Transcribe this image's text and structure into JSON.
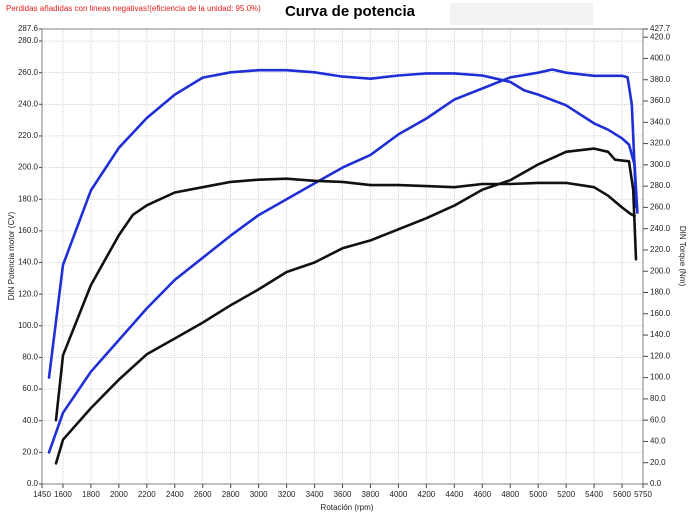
{
  "chart_data": {
    "type": "line",
    "title": "Curva de potencia",
    "subtitle": "Perdidas añadidas con lineas negativas!(eficiencia de la unidad: 95.0%)",
    "x_label": "Rotación (rpm)",
    "y_label": "DIN Potencia motor (CV)",
    "y2_label": "DIN Torque (Nm)",
    "xlim": [
      1450,
      5750
    ],
    "xticks": [
      1450,
      1600,
      1800,
      2000,
      2200,
      2400,
      2600,
      2800,
      3000,
      3200,
      3400,
      3600,
      3800,
      4000,
      4200,
      4400,
      4600,
      4800,
      5000,
      5200,
      5400,
      5600,
      5750
    ],
    "ylim": [
      0,
      287.6
    ],
    "yticks": [
      {
        "value": 0,
        "label": "0.0"
      },
      {
        "value": 20,
        "label": "20.0"
      },
      {
        "value": 40,
        "label": "40.0"
      },
      {
        "value": 60,
        "label": "60.0"
      },
      {
        "value": 80,
        "label": "80.0"
      },
      {
        "value": 100,
        "label": "100.0"
      },
      {
        "value": 120,
        "label": "120.0"
      },
      {
        "value": 140,
        "label": "140.0"
      },
      {
        "value": 160,
        "label": "160.0"
      },
      {
        "value": 180,
        "label": "180.0"
      },
      {
        "value": 200,
        "label": "200.0"
      },
      {
        "value": 220,
        "label": "220.0"
      },
      {
        "value": 240,
        "label": "240.0"
      },
      {
        "value": 260,
        "label": "260.0"
      },
      {
        "value": 280,
        "label": "280.0"
      },
      287.6
    ],
    "y2lim": [
      0,
      427.7
    ],
    "y2ticks": [
      {
        "value": 0,
        "label": "0.0"
      },
      {
        "value": 20,
        "label": "20.0"
      },
      {
        "value": 40,
        "label": "40.0"
      },
      {
        "value": 60,
        "label": "60.0"
      },
      {
        "value": 80,
        "label": "80.0"
      },
      {
        "value": 100,
        "label": "100.0"
      },
      {
        "value": 120,
        "label": "120.0"
      },
      {
        "value": 140,
        "label": "140.0"
      },
      {
        "value": 160,
        "label": "160.0"
      },
      {
        "value": 180,
        "label": "180.0"
      },
      {
        "value": 200,
        "label": "200.0"
      },
      {
        "value": 220,
        "label": "220.0"
      },
      {
        "value": 240,
        "label": "240.0"
      },
      {
        "value": 260,
        "label": "260.0"
      },
      {
        "value": 280,
        "label": "280.0"
      },
      {
        "value": 300,
        "label": "300.0"
      },
      {
        "value": 320,
        "label": "320.0"
      },
      {
        "value": 340,
        "label": "340.0"
      },
      {
        "value": 360,
        "label": "360.0"
      },
      {
        "value": 380,
        "label": "380.0"
      },
      {
        "value": 400,
        "label": "400.0"
      },
      {
        "value": 420,
        "label": "420.0"
      },
      427.7
    ],
    "grid": true,
    "series": [
      {
        "color": "#1f2fd6",
        "axis": "y2",
        "x": [
          1500,
          1600,
          1800,
          2000,
          2200,
          2400,
          2600,
          2800,
          3000,
          3200,
          3400,
          3600,
          3800,
          4000,
          4200,
          4400,
          4600,
          4800,
          4900,
          5000,
          5200,
          5400,
          5500,
          5600,
          5650,
          5690,
          5710
        ],
        "values": [
          100,
          206,
          276,
          316,
          344,
          366,
          382,
          387,
          389,
          389,
          387,
          383,
          381,
          384,
          386,
          386,
          384,
          378,
          370,
          366,
          356,
          339,
          333,
          325,
          319,
          300,
          255
        ]
      },
      {
        "color": "#1f2fd6",
        "axis": "y",
        "x": [
          1500,
          1600,
          1800,
          2000,
          2200,
          2400,
          2600,
          2800,
          3000,
          3200,
          3400,
          3600,
          3800,
          4000,
          4200,
          4400,
          4600,
          4800,
          5000,
          5100,
          5200,
          5400,
          5500,
          5600,
          5640,
          5670,
          5690,
          5700
        ],
        "values": [
          20,
          45,
          71,
          91,
          111,
          129,
          143,
          157,
          170,
          180,
          190,
          200,
          208,
          221,
          231,
          243,
          250,
          257,
          260,
          262,
          260,
          258,
          258,
          258,
          257,
          240,
          200,
          175
        ]
      },
      {
        "color": "#111111",
        "axis": "y2",
        "x": [
          1550,
          1600,
          1800,
          2000,
          2100,
          2200,
          2400,
          2600,
          2800,
          3000,
          3200,
          3400,
          3600,
          3800,
          4000,
          4200,
          4400,
          4600,
          4800,
          5000,
          5200,
          5400,
          5500,
          5600,
          5660,
          5690
        ],
        "values": [
          60,
          121,
          187,
          234,
          253,
          262,
          274,
          279,
          284,
          286,
          287,
          285,
          284,
          281,
          281,
          280,
          279,
          282,
          282,
          283,
          283,
          279,
          271,
          260,
          254,
          252
        ]
      },
      {
        "color": "#111111",
        "axis": "y",
        "x": [
          1550,
          1600,
          1800,
          2000,
          2200,
          2400,
          2600,
          2800,
          3000,
          3200,
          3400,
          3600,
          3800,
          4000,
          4200,
          4400,
          4600,
          4800,
          5000,
          5200,
          5400,
          5500,
          5550,
          5650,
          5680,
          5700
        ],
        "values": [
          13,
          28,
          48,
          66,
          82,
          92,
          102,
          113,
          123,
          134,
          140,
          149,
          154,
          161,
          168,
          176,
          186,
          192,
          202,
          210,
          212,
          210,
          205,
          204,
          186,
          142
        ]
      }
    ]
  }
}
